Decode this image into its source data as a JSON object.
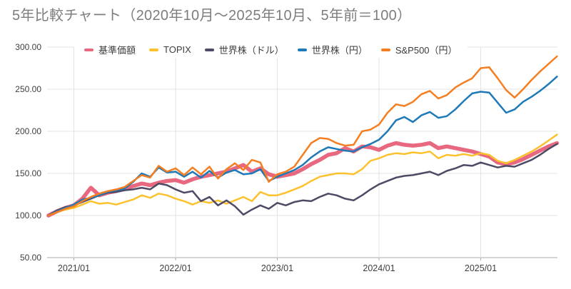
{
  "title": "5年比較チャート（2020年10月～2025年10月、5年前＝100）",
  "colors": {
    "title_text": "#7d7d7d",
    "axis_label_text": "#3e3e3e",
    "gridline": "#e3e3e3",
    "axis_line": "#ababab",
    "background": "#ffffff"
  },
  "chart_data": {
    "type": "line",
    "title": "5年比較チャート（2020年10月～2025年10月、5年前＝100）",
    "x_start": "2020-10",
    "x_end": "2025-10",
    "x_unit": "month",
    "x_tick_labels": [
      "2021/01",
      "2022/01",
      "2023/01",
      "2024/01",
      "2025/01"
    ],
    "y_ticks": [
      300,
      250,
      200,
      150,
      100,
      50
    ],
    "y_tick_labels": [
      "300.00",
      "250.00",
      "200.00",
      "150.00",
      "100.00",
      "50.00"
    ],
    "ylim": [
      50,
      300
    ],
    "grid": true,
    "legend_position": "top",
    "baseline_note": "5年前＝100",
    "series": [
      {
        "name": "基準価額",
        "color": "#e8687f",
        "line_width": 5.5,
        "values": [
          100,
          105,
          109,
          112,
          120,
          133,
          124,
          127,
          129,
          132,
          135,
          138,
          136,
          139,
          141,
          142,
          139,
          143,
          146,
          148,
          150,
          152,
          156,
          160,
          152,
          156,
          149,
          146,
          148,
          150,
          155,
          161,
          166,
          172,
          174,
          180,
          176,
          182,
          181,
          178,
          183,
          186,
          184,
          183,
          184,
          186,
          180,
          182,
          180,
          178,
          176,
          173,
          170,
          163,
          161,
          163,
          167,
          172,
          177,
          182,
          186
        ]
      },
      {
        "name": "TOPIX",
        "color": "#fcc22d",
        "line_width": 2.5,
        "values": [
          100,
          104,
          107,
          109,
          113,
          117,
          114,
          115,
          113,
          116,
          119,
          124,
          121,
          126,
          124,
          120,
          117,
          113,
          117,
          115,
          118,
          114,
          118,
          122,
          117,
          128,
          124,
          124,
          127,
          131,
          135,
          141,
          146,
          148,
          150,
          150,
          149,
          155,
          165,
          168,
          172,
          174,
          173,
          175,
          174,
          176,
          168,
          172,
          171,
          173,
          171,
          174,
          172,
          165,
          162,
          166,
          171,
          176,
          182,
          189,
          196
        ]
      },
      {
        "name": "世界株（ドル）",
        "color": "#4e4a66",
        "line_width": 2.5,
        "values": [
          100,
          106,
          110,
          112,
          116,
          120,
          124,
          127,
          128,
          130,
          131,
          133,
          131,
          138,
          136,
          131,
          127,
          129,
          117,
          122,
          112,
          118,
          111,
          101,
          107,
          112,
          108,
          115,
          112,
          116,
          118,
          117,
          122,
          126,
          124,
          120,
          118,
          124,
          131,
          137,
          141,
          145,
          147,
          148,
          150,
          152,
          148,
          153,
          156,
          160,
          159,
          163,
          160,
          157,
          159,
          158,
          162,
          166,
          172,
          179,
          185
        ]
      },
      {
        "name": "世界株（円）",
        "color": "#1e79b8",
        "line_width": 2.5,
        "values": [
          100,
          105,
          109,
          113,
          119,
          121,
          124,
          128,
          130,
          132,
          140,
          150,
          146,
          157,
          151,
          152,
          146,
          152,
          145,
          153,
          145,
          151,
          154,
          149,
          150,
          155,
          141,
          146,
          150,
          154,
          160,
          169,
          176,
          181,
          179,
          177,
          176,
          181,
          185,
          190,
          200,
          213,
          217,
          211,
          219,
          223,
          216,
          218,
          226,
          236,
          245,
          247,
          246,
          234,
          222,
          226,
          235,
          241,
          248,
          256,
          265
        ]
      },
      {
        "name": "S&P500（円）",
        "color": "#f57e20",
        "line_width": 2.5,
        "values": [
          100,
          104,
          108,
          111,
          117,
          122,
          126,
          129,
          131,
          134,
          141,
          148,
          145,
          159,
          152,
          156,
          148,
          157,
          149,
          158,
          144,
          155,
          162,
          154,
          166,
          163,
          140,
          149,
          152,
          158,
          172,
          186,
          192,
          191,
          186,
          183,
          184,
          200,
          202,
          208,
          222,
          232,
          230,
          235,
          244,
          248,
          239,
          243,
          252,
          258,
          263,
          275,
          276,
          263,
          249,
          240,
          250,
          261,
          271,
          280,
          289
        ]
      }
    ]
  }
}
